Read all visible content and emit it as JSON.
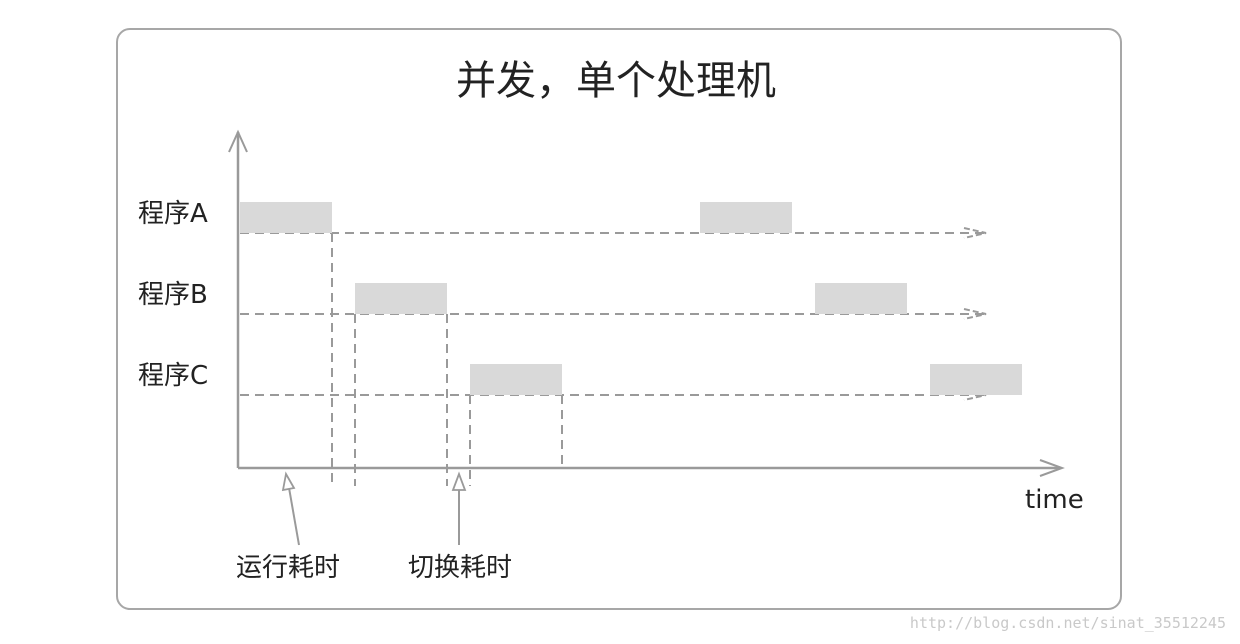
{
  "title": "并发，单个处理机",
  "programs": [
    {
      "name": "程序A",
      "runs": [
        [
          0,
          1
        ],
        [
          4,
          5
        ]
      ]
    },
    {
      "name": "程序B",
      "runs": [
        [
          1,
          2
        ],
        [
          5,
          6
        ]
      ]
    },
    {
      "name": "程序C",
      "runs": [
        [
          2,
          3
        ],
        [
          6,
          7
        ]
      ]
    }
  ],
  "x_axis_label": "time",
  "annotations": {
    "run_time": "运行耗时",
    "switch_time": "切换耗时"
  },
  "watermark": "http://blog.csdn.net/sinat_35512245",
  "colors": {
    "block": "#d9d9d9",
    "line": "#9a9a9a",
    "frame": "#a7a7a7",
    "text": "#222222"
  }
}
